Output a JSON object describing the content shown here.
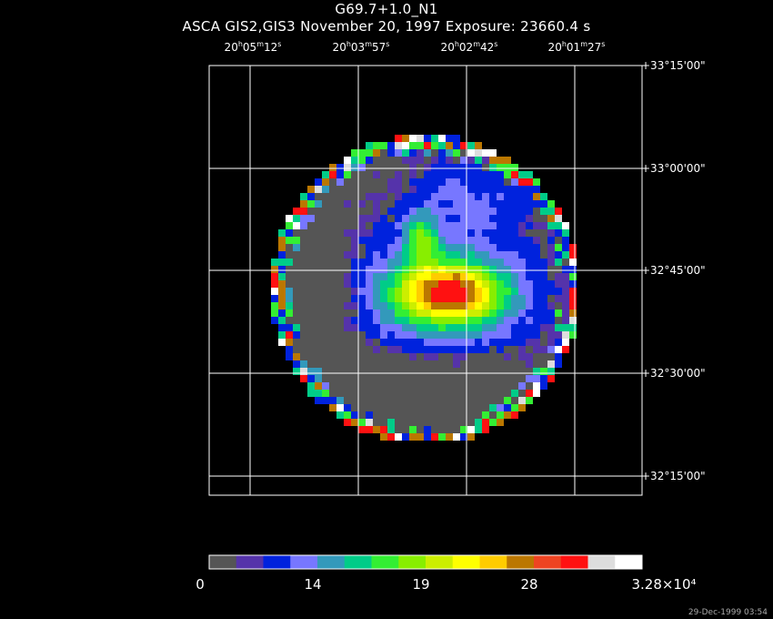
{
  "header": {
    "title": "G69.7+1.0_N1",
    "subtitle": "ASCA GIS2,GIS3 November 20, 1997 Exposure: 23660.4 s"
  },
  "ra_labels": [
    "20h05m12s",
    "20h03m57s",
    "20h02m42s",
    "20h01m27s"
  ],
  "dec_labels": [
    "+33°15'00\"",
    "+33°00'00\"",
    "+32°45'00\"",
    "+32°30'00\"",
    "+32°15'00\""
  ],
  "colorbar": {
    "colors": [
      "#555555",
      "#5533aa",
      "#0022dd",
      "#7777ff",
      "#3399bb",
      "#00cc88",
      "#33ee33",
      "#88ee00",
      "#ccee00",
      "#ffff00",
      "#ffcc00",
      "#bb7700",
      "#ee4422",
      "#ff1111",
      "#dddddd",
      "#ffffff"
    ],
    "tick_labels": [
      "0",
      "14",
      "19",
      "28",
      "3.28×10⁴"
    ]
  },
  "footer": {
    "date": "29-Dec-1999 03:54"
  }
}
